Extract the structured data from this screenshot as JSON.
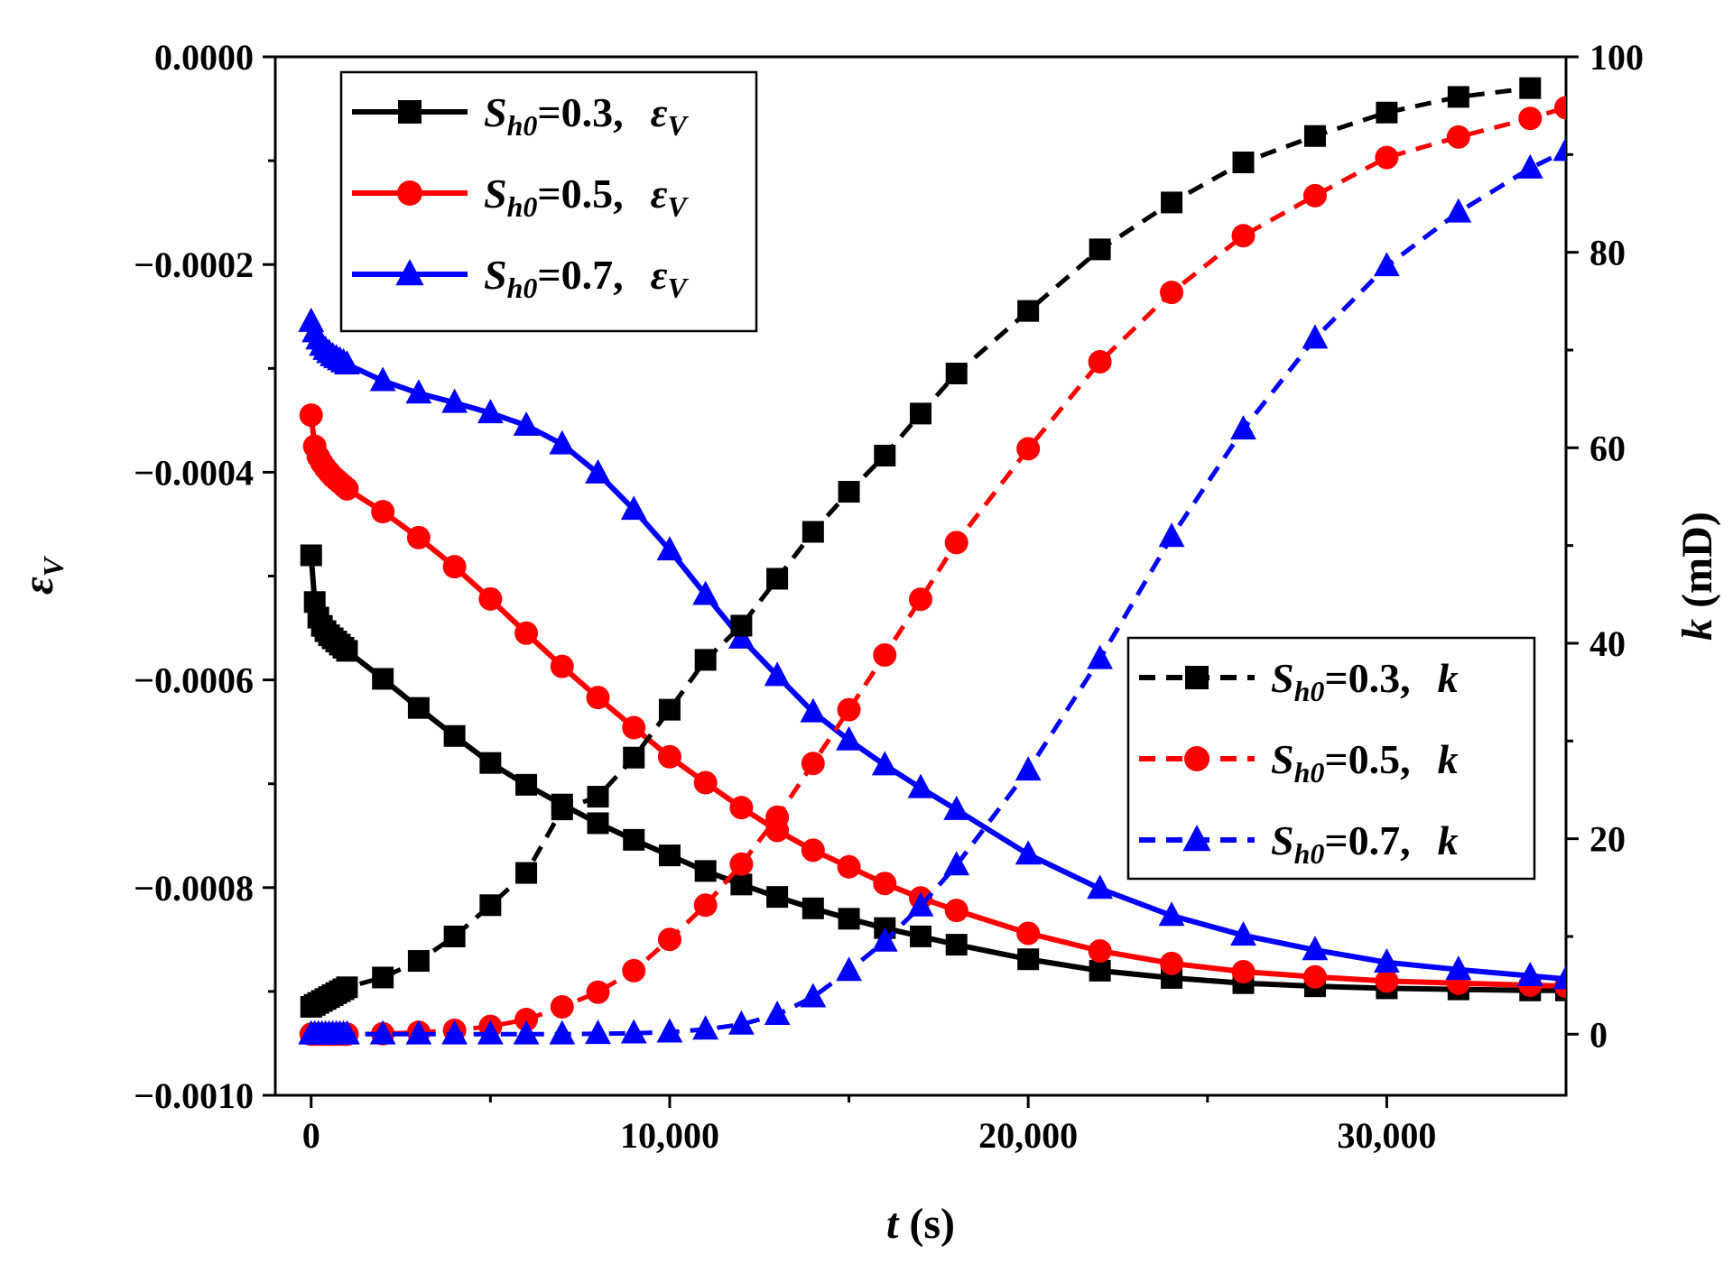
{
  "chart_data": {
    "type": "line",
    "x_axis": {
      "label_var": "t",
      "label_unit": " (s)",
      "lim": [
        -1000,
        35000
      ],
      "ticks": [
        0,
        10000,
        20000,
        30000
      ],
      "tick_labels": [
        "0",
        "10,000",
        "20,000",
        "30,000"
      ]
    },
    "y_left": {
      "label_base": "ε",
      "label_sub": "V",
      "lim": [
        -0.001,
        0.0
      ],
      "ticks": [
        0.0,
        -0.0002,
        -0.0004,
        -0.0006,
        -0.0008,
        -0.001
      ],
      "tick_labels": [
        "0.0000",
        "−0.0002",
        "−0.0004",
        "−0.0006",
        "−0.0008",
        "−0.0010"
      ]
    },
    "y_right": {
      "label_var": "k",
      "label_unit": " (mD)",
      "lim": [
        -6.25,
        100
      ],
      "ticks": [
        0,
        20,
        40,
        60,
        80,
        100
      ],
      "tick_labels": [
        "0",
        "20",
        "40",
        "60",
        "80",
        "100"
      ]
    },
    "series": [
      {
        "name": "Sh0=0.3, εV",
        "axis": "left",
        "color": "#000000",
        "dash": "solid",
        "marker": "square",
        "legend": {
          "s": "S",
          "sub": "h0",
          "val": "=0.3,",
          "sym": "ε",
          "symsub": "V"
        },
        "x": [
          0,
          100,
          200,
          300,
          400,
          500,
          600,
          700,
          800,
          900,
          1000,
          2000,
          3000,
          4000,
          5000,
          6000,
          7000,
          8000,
          9000,
          10000,
          11000,
          12000,
          13000,
          14000,
          15000,
          16000,
          17000,
          18000,
          20000,
          22000,
          24000,
          26000,
          28000,
          30000,
          32000,
          34000,
          35000
        ],
        "y": [
          -0.00048,
          -0.000525,
          -0.00054,
          -0.000548,
          -0.000553,
          -0.000557,
          -0.00056,
          -0.000563,
          -0.000566,
          -0.000569,
          -0.000572,
          -0.000599,
          -0.000627,
          -0.000654,
          -0.00068,
          -0.000701,
          -0.00072,
          -0.000738,
          -0.000754,
          -0.000769,
          -0.000784,
          -0.000797,
          -0.000809,
          -0.00082,
          -0.00083,
          -0.000839,
          -0.000847,
          -0.000855,
          -0.000869,
          -0.00088,
          -0.000887,
          -0.000892,
          -0.000895,
          -0.000897,
          -0.000898,
          -0.000899,
          -0.000899
        ]
      },
      {
        "name": "Sh0=0.5, εV",
        "axis": "left",
        "color": "#ff0000",
        "dash": "solid",
        "marker": "circle",
        "legend": {
          "s": "S",
          "sub": "h0",
          "val": "=0.5,",
          "sym": "ε",
          "symsub": "V"
        },
        "x": [
          0,
          100,
          200,
          300,
          400,
          500,
          600,
          700,
          800,
          900,
          1000,
          2000,
          3000,
          4000,
          5000,
          6000,
          7000,
          8000,
          9000,
          10000,
          11000,
          12000,
          13000,
          14000,
          15000,
          16000,
          17000,
          18000,
          20000,
          22000,
          24000,
          26000,
          28000,
          30000,
          32000,
          34000,
          35000
        ],
        "y": [
          -0.000345,
          -0.000375,
          -0.000385,
          -0.000391,
          -0.000396,
          -0.0004,
          -0.000404,
          -0.000407,
          -0.00041,
          -0.000413,
          -0.000416,
          -0.000438,
          -0.000463,
          -0.000491,
          -0.000522,
          -0.000555,
          -0.000587,
          -0.000617,
          -0.000646,
          -0.000674,
          -0.000699,
          -0.000723,
          -0.000745,
          -0.000764,
          -0.00078,
          -0.000796,
          -0.00081,
          -0.000822,
          -0.000844,
          -0.000861,
          -0.000873,
          -0.000881,
          -0.000886,
          -0.00089,
          -0.000892,
          -0.000894,
          -0.000895
        ]
      },
      {
        "name": "Sh0=0.7, εV",
        "axis": "left",
        "color": "#0000ff",
        "dash": "solid",
        "marker": "triangle",
        "legend": {
          "s": "S",
          "sub": "h0",
          "val": "=0.7,",
          "sym": "ε",
          "symsub": "V"
        },
        "x": [
          0,
          100,
          200,
          300,
          400,
          500,
          600,
          700,
          800,
          900,
          1000,
          2000,
          3000,
          4000,
          5000,
          6000,
          7000,
          8000,
          9000,
          10000,
          11000,
          12000,
          13000,
          14000,
          15000,
          16000,
          17000,
          18000,
          20000,
          22000,
          24000,
          26000,
          28000,
          30000,
          32000,
          34000,
          35000
        ],
        "y": [
          -0.000255,
          -0.000265,
          -0.000272,
          -0.000278,
          -0.000282,
          -0.000285,
          -0.000288,
          -0.00029,
          -0.000292,
          -0.000294,
          -0.000296,
          -0.000312,
          -0.000324,
          -0.000333,
          -0.000343,
          -0.000355,
          -0.000373,
          -0.000401,
          -0.000436,
          -0.000475,
          -0.000518,
          -0.00056,
          -0.000596,
          -0.000631,
          -0.000658,
          -0.000682,
          -0.000704,
          -0.000725,
          -0.000768,
          -0.000801,
          -0.000827,
          -0.000846,
          -0.00086,
          -0.000872,
          -0.000879,
          -0.000885,
          -0.000888
        ]
      },
      {
        "name": "Sh0=0.3, k",
        "axis": "right",
        "color": "#000000",
        "dash": "dashed",
        "marker": "square",
        "legend": {
          "s": "S",
          "sub": "h0",
          "val": "=0.3,",
          "sym": "k",
          "symsub": ""
        },
        "x": [
          0,
          100,
          200,
          300,
          400,
          500,
          600,
          700,
          800,
          900,
          1000,
          2000,
          3000,
          4000,
          5000,
          6000,
          7000,
          8000,
          9000,
          10000,
          11000,
          12000,
          13000,
          14000,
          15000,
          16000,
          17000,
          18000,
          20000,
          22000,
          24000,
          26000,
          28000,
          30000,
          32000,
          34000
        ],
        "y": [
          2.8,
          3.0,
          3.2,
          3.4,
          3.6,
          3.8,
          4.0,
          4.2,
          4.4,
          4.6,
          4.8,
          5.8,
          7.5,
          10.0,
          13.2,
          16.5,
          23.0,
          24.3,
          28.3,
          33.2,
          38.3,
          41.8,
          46.6,
          51.4,
          55.5,
          59.2,
          63.5,
          67.6,
          74.0,
          80.3,
          85.1,
          89.2,
          91.9,
          94.3,
          95.9,
          96.8
        ]
      },
      {
        "name": "Sh0=0.5, k",
        "axis": "right",
        "color": "#ff0000",
        "dash": "dashed",
        "marker": "circle",
        "legend": {
          "s": "S",
          "sub": "h0",
          "val": "=0.5,",
          "sym": "k",
          "symsub": ""
        },
        "x": [
          0,
          100,
          200,
          300,
          400,
          500,
          600,
          700,
          800,
          900,
          1000,
          2000,
          3000,
          4000,
          5000,
          6000,
          7000,
          8000,
          9000,
          10000,
          11000,
          12000,
          13000,
          14000,
          15000,
          16000,
          17000,
          18000,
          20000,
          22000,
          24000,
          26000,
          28000,
          30000,
          32000,
          34000,
          35000
        ],
        "y": [
          0,
          0,
          0,
          0,
          0,
          0,
          0,
          0,
          0,
          0,
          0,
          0.05,
          0.2,
          0.4,
          0.8,
          1.5,
          2.8,
          4.3,
          6.5,
          9.7,
          13.2,
          17.4,
          22.2,
          27.7,
          33.2,
          38.8,
          44.5,
          50.3,
          59.9,
          68.8,
          75.9,
          81.7,
          85.8,
          89.7,
          91.8,
          93.7,
          94.8
        ]
      },
      {
        "name": "Sh0=0.7, k",
        "axis": "right",
        "color": "#0000ff",
        "dash": "dashed",
        "marker": "triangle",
        "legend": {
          "s": "S",
          "sub": "h0",
          "val": "=0.7,",
          "sym": "k",
          "symsub": ""
        },
        "x": [
          0,
          100,
          200,
          300,
          400,
          500,
          600,
          700,
          800,
          900,
          1000,
          2000,
          3000,
          4000,
          5000,
          6000,
          7000,
          8000,
          9000,
          10000,
          11000,
          12000,
          13000,
          14000,
          15000,
          16000,
          17000,
          18000,
          20000,
          22000,
          24000,
          26000,
          28000,
          30000,
          32000,
          34000,
          35000
        ],
        "y": [
          0,
          0,
          0,
          0,
          0,
          0,
          0,
          0,
          0,
          0,
          0,
          0,
          0,
          0,
          0,
          0,
          0,
          0.05,
          0.1,
          0.2,
          0.5,
          1.0,
          2.0,
          3.8,
          6.5,
          9.5,
          13.1,
          17.3,
          27.0,
          38.4,
          50.9,
          61.9,
          71.2,
          78.6,
          84.1,
          88.6,
          90.4
        ]
      }
    ]
  }
}
